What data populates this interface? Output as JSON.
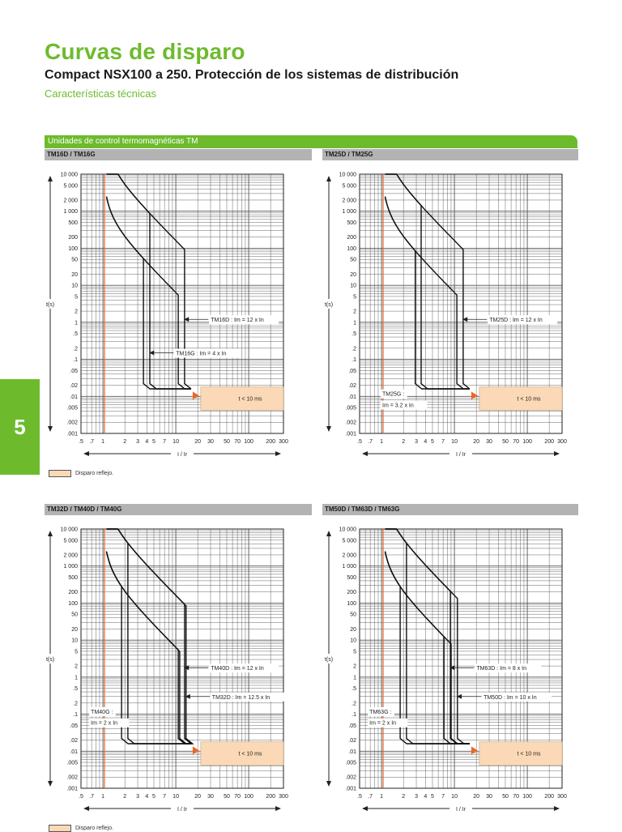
{
  "page": {
    "title": "Curvas de disparo",
    "subtitle": "Compact NSX100 a 250. Protección de los sistemas de distribución",
    "section": "Características técnicas",
    "banner": "Unidades de control termomagnéticas TM",
    "tab_number": "5",
    "legend_label": "Disparo reflejo.",
    "legend_label_2": "Disparo reflejo."
  },
  "colors": {
    "accent": "#6dbb2d",
    "header_gray": "#b3b3b3",
    "reflex_fill": "#fbd9b6",
    "reflex_arrow": "#e8672a",
    "marker_line": "#e8672a"
  },
  "chart_data": [
    {
      "type": "line",
      "title": "TM16D / TM16G",
      "xlabel": "I / Ir",
      "ylabel": "t(s)",
      "x_scale": "log",
      "y_scale": "log",
      "xlim": [
        0.5,
        300
      ],
      "ylim": [
        0.001,
        10000
      ],
      "x_ticks": [
        ".5",
        ".7",
        "1",
        "2",
        "3",
        "4",
        "5",
        "7",
        "10",
        "20",
        "30",
        "50",
        "70",
        "100",
        "200",
        "300"
      ],
      "y_ticks": [
        "10 000",
        "5 000",
        "2 000",
        "1 000",
        "500",
        "200",
        "100",
        "50",
        "20",
        "10",
        "5",
        "2",
        "1",
        ".5",
        ".2",
        ".1",
        ".05",
        ".02",
        ".01",
        ".005",
        ".002",
        ".001"
      ],
      "reflex_label": "t < 10 ms",
      "annotations": [
        {
          "text": "TM16D : Im = 12 x In",
          "x": 12,
          "y": 1.2
        },
        {
          "text": "TM16G : Im = 4 x In",
          "x": 4,
          "y": 0.15
        }
      ],
      "curves": [
        {
          "hot": 0.55,
          "cold": 0.25,
          "im_low": 3.6,
          "im_high": 4.4
        },
        {
          "hot": 0.55,
          "cold": 0.25,
          "im_low": 10.8,
          "im_high": 13.2
        }
      ]
    },
    {
      "type": "line",
      "title": "TM25D / TM25G",
      "xlabel": "I / Ir",
      "ylabel": "t(s)",
      "x_scale": "log",
      "y_scale": "log",
      "xlim": [
        0.5,
        300
      ],
      "ylim": [
        0.001,
        10000
      ],
      "x_ticks": [
        ".5",
        ".7",
        "1",
        "2",
        "3",
        "4",
        "5",
        "7",
        "10",
        "20",
        "30",
        "50",
        "70",
        "100",
        "200",
        "300"
      ],
      "y_ticks": [
        "10 000",
        "5 000",
        "2 000",
        "1 000",
        "500",
        "200",
        "100",
        "50",
        "20",
        "10",
        "5",
        "2",
        "1",
        ".5",
        ".2",
        ".1",
        ".05",
        ".02",
        ".01",
        ".005",
        ".002",
        ".001"
      ],
      "reflex_label": "t < 10 ms",
      "annotations": [
        {
          "text": "TM25D : Im = 12 x In",
          "x": 12,
          "y": 1.2
        },
        {
          "text": "TM25G :",
          "x": 3,
          "y": 0.012
        },
        {
          "text": "Im = 3.2 x In",
          "x": 3,
          "y": 0.006
        }
      ],
      "curves": [
        {
          "hot": 0.55,
          "cold": 0.25,
          "im_low": 2.9,
          "im_high": 3.5
        },
        {
          "hot": 0.55,
          "cold": 0.25,
          "im_low": 10.8,
          "im_high": 13.2
        }
      ]
    },
    {
      "type": "line",
      "title": "TM32D / TM40D / TM40G",
      "xlabel": "I / Ir",
      "ylabel": "t(s)",
      "x_scale": "log",
      "y_scale": "log",
      "xlim": [
        0.5,
        300
      ],
      "ylim": [
        0.001,
        10000
      ],
      "x_ticks": [
        ".5",
        ".7",
        "1",
        "2",
        "3",
        "4",
        "5",
        "7",
        "10",
        "20",
        "30",
        "50",
        "70",
        "100",
        "200",
        "300"
      ],
      "y_ticks": [
        "10 000",
        "5 000",
        "2 000",
        "1 000",
        "500",
        "200",
        "100",
        "50",
        "20",
        "10",
        "5",
        "2",
        "1",
        ".5",
        ".2",
        ".1",
        ".05",
        ".02",
        ".01",
        ".005",
        ".002",
        ".001"
      ],
      "reflex_label": "t < 10 ms",
      "annotations": [
        {
          "text": "TM40D : Im = 12 x In",
          "x": 12,
          "y": 1.8
        },
        {
          "text": "TM32D : Im = 12.5 x In",
          "x": 12.5,
          "y": 0.3
        },
        {
          "text": "TM40G :",
          "x": 2,
          "y": 0.12
        },
        {
          "text": "Im = 2 x In",
          "x": 2,
          "y": 0.06
        }
      ],
      "curves": [
        {
          "hot": 0.55,
          "cold": 0.25,
          "im_low": 1.8,
          "im_high": 2.2
        },
        {
          "hot": 0.55,
          "cold": 0.25,
          "im_low": 10.8,
          "im_high": 13.2
        },
        {
          "hot": 0.55,
          "cold": 0.25,
          "im_low": 11.3,
          "im_high": 13.8
        }
      ]
    },
    {
      "type": "line",
      "title": "TM50D / TM63D / TM63G",
      "xlabel": "I / Ir",
      "ylabel": "t(s)",
      "x_scale": "log",
      "y_scale": "log",
      "xlim": [
        0.5,
        300
      ],
      "ylim": [
        0.001,
        10000
      ],
      "x_ticks": [
        ".5",
        ".7",
        "1",
        "2",
        "3",
        "4",
        "5",
        "7",
        "10",
        "20",
        "30",
        "50",
        "70",
        "100",
        "200",
        "300"
      ],
      "y_ticks": [
        "10 000",
        "5 000",
        "2 000",
        "1 000",
        "500",
        "200",
        "100",
        "50",
        "20",
        "10",
        "5",
        "2",
        "1",
        ".5",
        ".2",
        ".1",
        ".05",
        ".02",
        ".01",
        ".005",
        ".002",
        ".001"
      ],
      "reflex_label": "t < 10 ms",
      "annotations": [
        {
          "text": "TM63D : Im = 8 x In",
          "x": 8,
          "y": 1.8
        },
        {
          "text": "TM50D : Im = 10 x In",
          "x": 10,
          "y": 0.3
        },
        {
          "text": "TM63G :",
          "x": 2,
          "y": 0.12
        },
        {
          "text": "Im = 2 x In",
          "x": 2,
          "y": 0.06
        }
      ],
      "curves": [
        {
          "hot": 0.55,
          "cold": 0.25,
          "im_low": 1.8,
          "im_high": 2.2
        },
        {
          "hot": 0.55,
          "cold": 0.25,
          "im_low": 7.2,
          "im_high": 8.8
        },
        {
          "hot": 0.55,
          "cold": 0.25,
          "im_low": 9.0,
          "im_high": 11.0
        }
      ]
    }
  ]
}
